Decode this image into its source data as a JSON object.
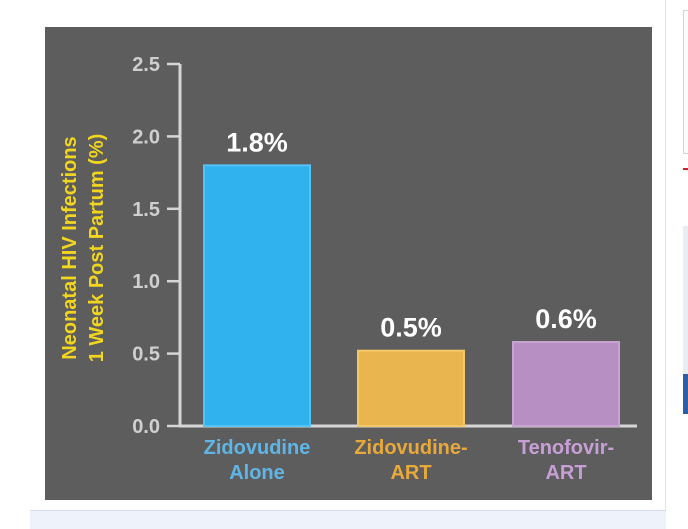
{
  "chart_data": {
    "type": "bar",
    "categories": [
      "Zidovudine Alone",
      "Zidovudine-ART",
      "Tenofovir-ART"
    ],
    "category_lines": [
      [
        "Zidovudine",
        "Alone"
      ],
      [
        "Zidovudine-",
        "ART"
      ],
      [
        "Tenofovir-",
        "ART"
      ]
    ],
    "values": [
      1.8,
      0.52,
      0.58
    ],
    "data_labels": [
      "1.8%",
      "0.5%",
      "0.6%"
    ],
    "ylabel_lines": [
      "Neonatal HIV Infections",
      "1 Week Post Partum (%)"
    ],
    "ylim": [
      0,
      2.5
    ],
    "yticks": [
      "0.0",
      "0.5",
      "1.0",
      "1.5",
      "2.0",
      "2.5"
    ],
    "grid": false,
    "colors": {
      "bars": [
        "#2fb2ee",
        "#e9b54f",
        "#b88fc3"
      ],
      "bar_edges": [
        "#55c3f5",
        "#f2c868",
        "#c8a4d2"
      ],
      "tick_labels": [
        "#5fb6e6",
        "#e9a93a",
        "#c79fd6"
      ],
      "ylabel": "#f1d51f",
      "axis": "#d6d6d6",
      "tick_text": "#cfcfcf",
      "value_text": "#ffffff",
      "background": "#5d5d5d"
    }
  }
}
